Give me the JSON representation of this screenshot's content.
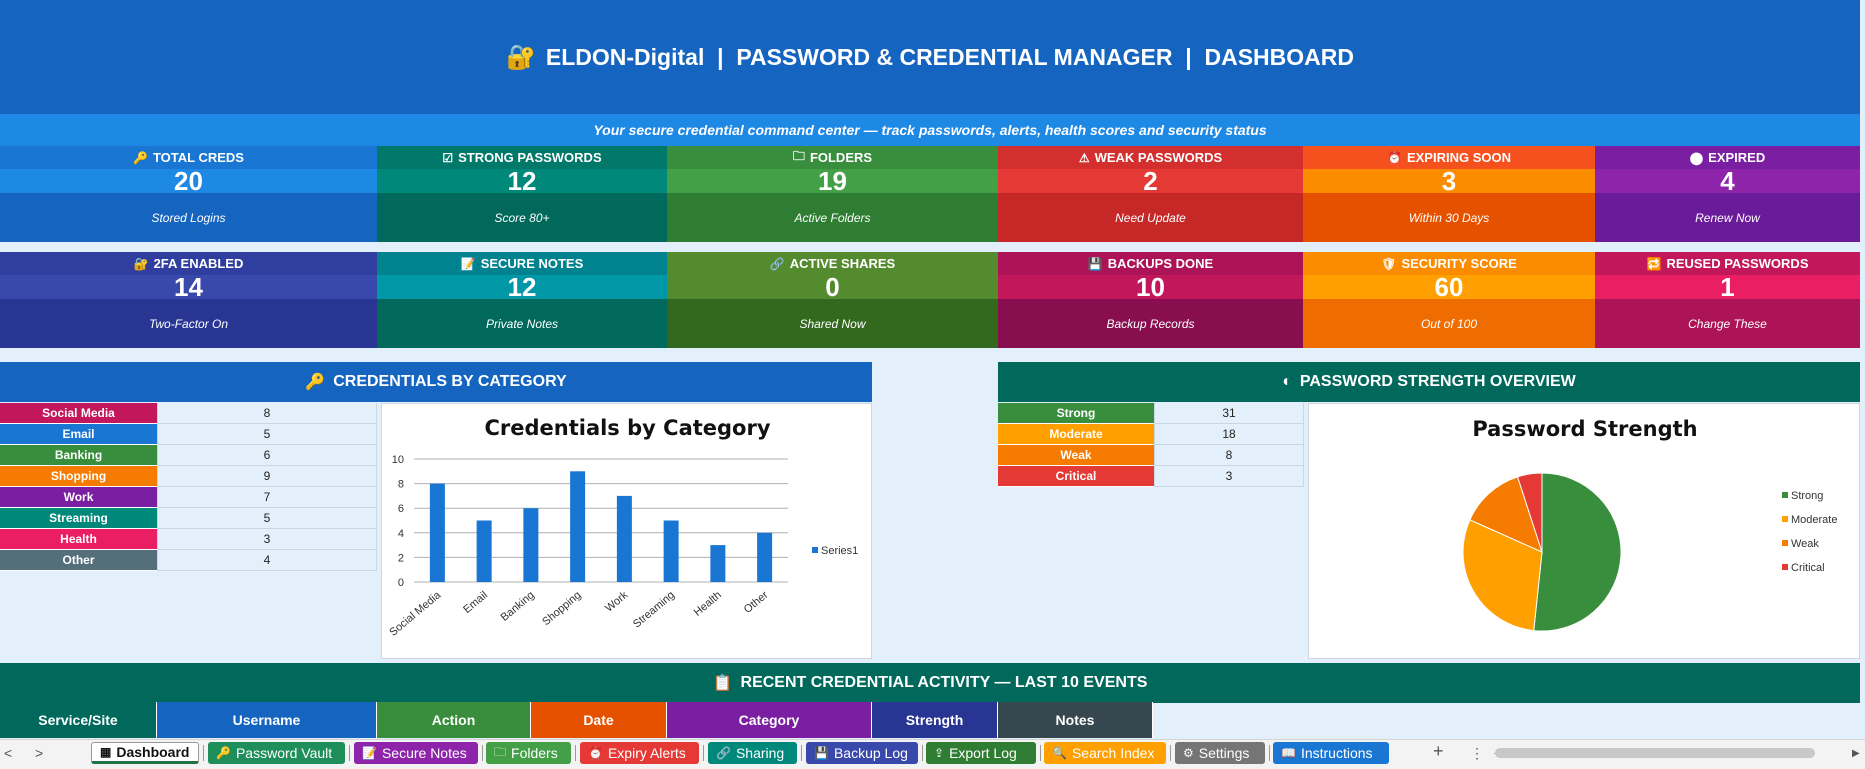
{
  "header": {
    "title": "ELDON-Digital  |  PASSWORD & CREDENTIAL MANAGER  |  DASHBOARD",
    "subtitle": "Your secure credential command center — track passwords, alerts, health scores and security status"
  },
  "kpis": [
    {
      "label": "TOTAL CREDS",
      "value": "20",
      "note": "Stored Logins",
      "icon": "key-icon",
      "colors": [
        "#1976d2",
        "#1e88e5",
        "#1565c0"
      ]
    },
    {
      "label": "STRONG PASSWORDS",
      "value": "12",
      "note": "Score 80+",
      "icon": "check-box-icon",
      "colors": [
        "#00796b",
        "#00897b",
        "#00695c"
      ]
    },
    {
      "label": "FOLDERS",
      "value": "19",
      "note": "Active Folders",
      "icon": "folder-icon",
      "colors": [
        "#388e3c",
        "#43a047",
        "#2e7d32"
      ]
    },
    {
      "label": "WEAK PASSWORDS",
      "value": "2",
      "note": "Need Update",
      "icon": "warning-icon",
      "colors": [
        "#d32f2f",
        "#e53935",
        "#c62828"
      ]
    },
    {
      "label": "EXPIRING SOON",
      "value": "3",
      "note": "Within 30 Days",
      "icon": "alarm-icon",
      "colors": [
        "#f4511e",
        "#fb8c00",
        "#e65100"
      ]
    },
    {
      "label": "EXPIRED",
      "value": "4",
      "note": "Renew Now",
      "icon": "circle-icon",
      "colors": [
        "#7b1fa2",
        "#8e24aa",
        "#6a1b9a"
      ]
    },
    {
      "label": "2FA ENABLED",
      "value": "14",
      "note": "Two-Factor On",
      "icon": "lock-icon",
      "colors": [
        "#303f9f",
        "#3949ab",
        "#283593"
      ]
    },
    {
      "label": "SECURE NOTES",
      "value": "12",
      "note": "Private Notes",
      "icon": "note-icon",
      "colors": [
        "#00838f",
        "#0097a7",
        "#00695c"
      ]
    },
    {
      "label": "ACTIVE SHARES",
      "value": "0",
      "note": "Shared Now",
      "icon": "link-icon",
      "colors": [
        "#558b2f",
        "#558b2f",
        "#33691e"
      ]
    },
    {
      "label": "BACKUPS DONE",
      "value": "10",
      "note": "Backup Records",
      "icon": "save-icon",
      "colors": [
        "#ad1457",
        "#c2185b",
        "#880e4f"
      ]
    },
    {
      "label": "SECURITY SCORE",
      "value": "60",
      "note": "Out of 100",
      "icon": "shield-check-icon",
      "colors": [
        "#fb8c00",
        "#ffa000",
        "#ef6c00"
      ]
    },
    {
      "label": "REUSED PASSWORDS",
      "value": "1",
      "note": "Change These",
      "icon": "repeat-icon",
      "colors": [
        "#c2185b",
        "#e91e63",
        "#ad1457"
      ]
    }
  ],
  "sections": {
    "category": "CREDENTIALS BY CATEGORY",
    "strength": "PASSWORD STRENGTH OVERVIEW",
    "activity": "RECENT CREDENTIAL ACTIVITY — LAST 10 EVENTS"
  },
  "category_table": [
    {
      "name": "Social Media",
      "count": "8",
      "color": "#c2185b"
    },
    {
      "name": "Email",
      "count": "5",
      "color": "#1976d2"
    },
    {
      "name": "Banking",
      "count": "6",
      "color": "#388e3c"
    },
    {
      "name": "Shopping",
      "count": "9",
      "color": "#f57c00"
    },
    {
      "name": "Work",
      "count": "7",
      "color": "#7b1fa2"
    },
    {
      "name": "Streaming",
      "count": "5",
      "color": "#00897b"
    },
    {
      "name": "Health",
      "count": "3",
      "color": "#e91e63"
    },
    {
      "name": "Other",
      "count": "4",
      "color": "#546e7a"
    }
  ],
  "strength_table": [
    {
      "name": "Strong",
      "count": "31",
      "color": "#388e3c"
    },
    {
      "name": "Moderate",
      "count": "18",
      "color": "#ffa000"
    },
    {
      "name": "Weak",
      "count": "8",
      "color": "#f57c00"
    },
    {
      "name": "Critical",
      "count": "3",
      "color": "#e53935"
    }
  ],
  "chart_data": [
    {
      "type": "bar",
      "title": "Credentials by Category",
      "categories": [
        "Social Media",
        "Email",
        "Banking",
        "Shopping",
        "Work",
        "Streaming",
        "Health",
        "Other"
      ],
      "series": [
        {
          "name": "Series1",
          "values": [
            8,
            5,
            6,
            9,
            7,
            5,
            3,
            4
          ]
        }
      ],
      "ylim": [
        0,
        10
      ],
      "yticks": [
        "0",
        "2",
        "4",
        "6",
        "8",
        "10"
      ],
      "grid": true,
      "legend": "right",
      "color": "#1976d2"
    },
    {
      "type": "pie",
      "title": "Password Strength",
      "labels": [
        "Strong",
        "Moderate",
        "Weak",
        "Critical"
      ],
      "values": [
        31,
        18,
        8,
        3
      ],
      "colors": [
        "#388e3c",
        "#ffa000",
        "#f57c00",
        "#e53935"
      ],
      "legend": "right"
    }
  ],
  "activity_columns": [
    {
      "label": "Service/Site",
      "color": "#00695c"
    },
    {
      "label": "Username",
      "color": "#1565c0"
    },
    {
      "label": "Action",
      "color": "#388e3c"
    },
    {
      "label": "Date",
      "color": "#e65100"
    },
    {
      "label": "Category",
      "color": "#7b1fa2"
    },
    {
      "label": "Strength",
      "color": "#283593"
    },
    {
      "label": "Notes",
      "color": "#37474f"
    }
  ],
  "tabs": [
    {
      "label": "Dashboard",
      "icon": "dashboard-icon",
      "color": "#ffffff",
      "active": true
    },
    {
      "label": "Password Vault",
      "icon": "key-icon",
      "color": "#1e8e5a"
    },
    {
      "label": "Secure Notes",
      "icon": "note-icon",
      "color": "#8e24aa"
    },
    {
      "label": "Folders",
      "icon": "folder-icon",
      "color": "#43a047"
    },
    {
      "label": "Expiry Alerts",
      "icon": "alarm-icon",
      "color": "#e53935"
    },
    {
      "label": "Sharing",
      "icon": "link-icon",
      "color": "#00897b"
    },
    {
      "label": "Backup Log",
      "icon": "save-icon",
      "color": "#3949ab"
    },
    {
      "label": "Export Log",
      "icon": "export-icon",
      "color": "#2e7d32"
    },
    {
      "label": "Search Index",
      "icon": "search-icon",
      "color": "#ffa000"
    },
    {
      "label": "Settings",
      "icon": "gear-icon",
      "color": "#757575"
    },
    {
      "label": "Instructions",
      "icon": "book-icon",
      "color": "#1976d2"
    }
  ]
}
